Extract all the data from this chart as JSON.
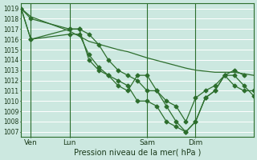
{
  "xlabel": "Pression niveau de la mer( hPa )",
  "bg_color": "#cce8e0",
  "grid_color": "#ffffff",
  "line_color": "#2d6e2d",
  "vline_color": "#2d6e2d",
  "ylim": [
    1006.5,
    1019.5
  ],
  "xlim": [
    0,
    96
  ],
  "yticks": [
    1007,
    1008,
    1009,
    1010,
    1011,
    1012,
    1013,
    1014,
    1015,
    1016,
    1017,
    1018,
    1019
  ],
  "xtick_positions": [
    4,
    20,
    52,
    72
  ],
  "xtick_labels": [
    "Ven",
    "Lun",
    "Sam",
    "Dim"
  ],
  "vlines": [
    4,
    20,
    52,
    72
  ],
  "series1_x": [
    0,
    4,
    20,
    24,
    28,
    34,
    40,
    44,
    52,
    60,
    68,
    72,
    80,
    88,
    96
  ],
  "series1_y": [
    1019,
    1018.2,
    1016.8,
    1016.3,
    1015.8,
    1015.4,
    1015.0,
    1014.8,
    1014.2,
    1013.7,
    1013.2,
    1013.0,
    1012.8,
    1012.8,
    1012.5
  ],
  "series2_x": [
    0,
    4,
    20,
    24,
    28,
    32,
    36,
    40,
    44,
    48,
    52,
    56,
    60,
    64,
    68,
    72,
    76,
    80,
    84,
    88,
    92,
    96
  ],
  "series2_y": [
    1019,
    1018,
    1017,
    1017,
    1016.5,
    1015.5,
    1014,
    1013,
    1012.5,
    1012,
    1011,
    1011,
    1010,
    1009.5,
    1008,
    1010.3,
    1011,
    1011.5,
    1012.5,
    1011.5,
    1011,
    1011
  ],
  "series3_x": [
    0,
    4,
    20,
    24,
    28,
    32,
    36,
    40,
    44,
    48,
    52,
    56,
    60,
    64,
    68,
    72,
    76,
    80,
    84,
    88,
    92,
    96
  ],
  "series3_y": [
    1019,
    1016,
    1016.5,
    1016.5,
    1014.5,
    1013.3,
    1012.5,
    1012,
    1011.5,
    1010,
    1010,
    1009.5,
    1008,
    1007.5,
    1007,
    1008,
    1010.3,
    1011,
    1012.5,
    1012.5,
    1011.5,
    1010.5
  ],
  "series4_x": [
    0,
    4,
    20,
    24,
    28,
    32,
    36,
    40,
    44,
    48,
    52,
    56,
    60,
    64,
    68,
    72,
    76,
    80,
    84,
    88,
    92
  ],
  "series4_y": [
    1019,
    1016,
    1017,
    1017,
    1014,
    1013,
    1012.5,
    1011.5,
    1011,
    1012.5,
    1012.5,
    1011,
    1009.5,
    1008,
    1007,
    1008,
    1010.3,
    1011,
    1012.5,
    1013,
    1012.5
  ]
}
